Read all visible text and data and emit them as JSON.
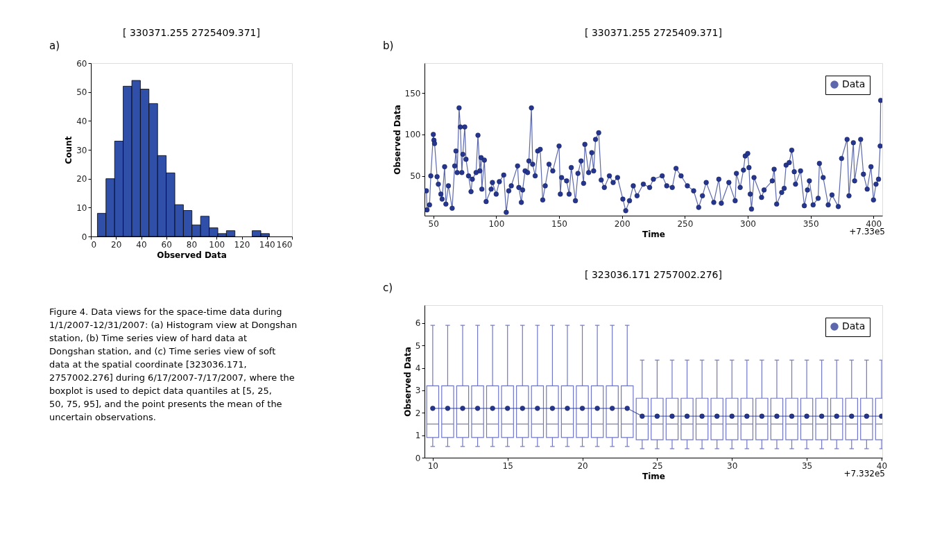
{
  "chart_data": [
    {
      "type": "histogram",
      "title": "[ 330371.255 2725409.371]",
      "xlabel": "Observed Data",
      "ylabel": "Count",
      "bins": [
        5.2,
        12.0,
        18.9,
        25.7,
        32.6,
        39.4,
        46.2,
        53.1,
        59.9,
        66.8,
        73.6,
        80.4,
        87.3,
        94.1,
        101.0,
        107.8,
        114.6,
        121.5,
        128.3,
        135.2,
        142.0
      ],
      "values": [
        8,
        20,
        33,
        52,
        54,
        51,
        46,
        28,
        22,
        11,
        9,
        4,
        7,
        3,
        1,
        2,
        0,
        0,
        2,
        1
      ],
      "color": "#2f4fa8",
      "xlim": [
        0,
        160
      ],
      "ylim": [
        0,
        60
      ],
      "xticks": [
        0,
        20,
        40,
        60,
        80,
        100,
        120,
        140,
        160
      ],
      "yticks": [
        0,
        10,
        20,
        30,
        40,
        50,
        60
      ],
      "grid": false,
      "annotations": [
        "a)",
        "Figure 4. Data views for the space-time data during 1/1/2007-12/31/2007: (a) Histogram view at Dongshan station, (b) Time series view of hard data at Dongshan station, and (c) Time series view of soft data at the spatial coordinate [323036.171, 2757002.276] during 6/17/2007-7/17/2007, where the boxplot is used to depict data quantiles at [5, 25, 50, 75, 95], and the point presents the mean of the uncertain observations."
      ]
    },
    {
      "type": "line",
      "title": "[ 330371.255 2725409.371]",
      "xlabel": "Time",
      "ylabel": "Observed Data",
      "x": [
        44.5,
        45,
        47,
        48,
        50,
        50.5,
        51,
        53,
        54,
        56,
        57,
        59,
        60,
        62,
        65,
        67,
        68,
        69,
        70.5,
        71.5,
        72.7,
        73.5,
        75,
        76,
        78,
        80,
        81,
        84,
        85.5,
        87,
        88,
        88.6,
        90.6,
        92,
        96,
        97,
        100,
        102.5,
        106,
        108,
        110,
        112,
        117,
        118,
        120,
        121,
        123,
        125,
        126,
        128,
        129,
        131,
        133,
        135,
        137,
        139,
        142,
        145,
        150,
        151,
        152,
        156,
        158,
        159.7,
        163,
        165,
        167.5,
        169.5,
        170.5,
        173.5,
        176,
        177.5,
        179,
        181.5,
        183.5,
        186,
        190,
        193,
        196.5,
        200.7,
        203,
        206,
        209,
        212,
        217,
        222,
        225,
        232,
        235.6,
        240,
        243,
        247,
        252,
        257,
        261,
        264,
        267,
        273,
        277,
        279,
        285,
        290,
        291,
        294,
        296.6,
        298,
        300,
        301,
        302,
        303,
        305,
        311,
        313,
        319.5,
        321,
        323,
        327,
        329,
        330.5,
        333,
        335,
        337,
        338,
        342,
        345,
        347.5,
        349,
        352,
        356,
        357,
        360,
        364,
        367,
        372,
        374.6,
        379,
        380.5,
        384,
        385,
        389.8,
        392,
        395,
        398,
        400,
        402,
        404,
        405.3,
        405.7
      ],
      "series": [
        {
          "name": "Data",
          "color": "#26368f",
          "values": [
            32,
            9,
            15,
            50,
            100,
            93,
            89,
            49,
            40,
            28,
            22,
            61,
            16,
            38,
            11,
            62,
            80,
            54,
            132,
            109,
            54,
            76,
            109,
            70,
            50,
            31,
            46,
            54,
            99,
            56,
            72,
            34,
            69,
            19,
            34,
            42,
            28,
            43,
            51,
            6,
            32,
            38,
            62,
            36,
            18,
            33,
            56,
            54,
            68,
            132,
            64,
            50,
            80,
            82,
            21,
            38,
            64,
            56,
            86,
            28,
            48,
            44,
            28,
            60,
            20,
            53,
            68,
            41,
            88,
            54,
            78,
            56,
            94,
            102,
            45,
            36,
            50,
            42,
            48,
            22,
            8,
            20,
            38,
            26,
            40,
            36,
            46,
            50,
            38,
            36,
            59,
            50,
            38,
            32,
            12,
            26,
            42,
            18,
            46,
            17,
            42,
            20,
            53,
            36,
            57,
            74,
            77,
            60,
            28,
            10,
            48,
            24,
            33,
            44,
            58,
            16,
            30,
            35,
            63,
            66,
            81,
            55,
            40,
            56,
            14,
            33,
            44,
            15,
            23,
            65,
            48,
            15,
            27,
            13,
            71,
            94,
            26,
            90,
            44,
            94,
            52,
            34,
            61,
            21,
            40,
            46,
            86,
            141
          ]
        }
      ],
      "xlim": [
        43,
        407
      ],
      "ylim": [
        2,
        186
      ],
      "xticks": [
        50,
        100,
        150,
        200,
        250,
        300,
        350,
        400
      ],
      "yticks": [
        50,
        100,
        150
      ],
      "marker": "circle",
      "grid": false,
      "legend": "top right",
      "annotations": [
        "b)",
        "+7.33e5"
      ]
    },
    {
      "type": "box",
      "title": "[ 323036.171 2757002.276]",
      "xlabel": "Time",
      "ylabel": "Observed Data",
      "x": [
        10,
        11,
        12,
        13,
        14,
        15,
        16,
        17,
        18,
        19,
        20,
        21,
        22,
        23,
        24,
        25,
        26,
        27,
        28,
        29,
        30,
        31,
        32,
        33,
        34,
        35,
        36,
        37,
        38,
        39,
        40
      ],
      "boxes": [
        {
          "low": 0.5,
          "q1": 0.9,
          "median": 1.5,
          "q3": 3.2,
          "high": 5.9
        },
        {
          "low": 0.5,
          "q1": 0.9,
          "median": 1.5,
          "q3": 3.2,
          "high": 5.9
        },
        {
          "low": 0.5,
          "q1": 0.9,
          "median": 1.5,
          "q3": 3.2,
          "high": 5.9
        },
        {
          "low": 0.5,
          "q1": 0.9,
          "median": 1.5,
          "q3": 3.2,
          "high": 5.9
        },
        {
          "low": 0.5,
          "q1": 0.9,
          "median": 1.5,
          "q3": 3.2,
          "high": 5.9
        },
        {
          "low": 0.5,
          "q1": 0.9,
          "median": 1.5,
          "q3": 3.2,
          "high": 5.9
        },
        {
          "low": 0.5,
          "q1": 0.9,
          "median": 1.5,
          "q3": 3.2,
          "high": 5.9
        },
        {
          "low": 0.5,
          "q1": 0.9,
          "median": 1.5,
          "q3": 3.2,
          "high": 5.9
        },
        {
          "low": 0.5,
          "q1": 0.9,
          "median": 1.5,
          "q3": 3.2,
          "high": 5.9
        },
        {
          "low": 0.5,
          "q1": 0.9,
          "median": 1.5,
          "q3": 3.2,
          "high": 5.9
        },
        {
          "low": 0.5,
          "q1": 0.9,
          "median": 1.5,
          "q3": 3.2,
          "high": 5.9
        },
        {
          "low": 0.5,
          "q1": 0.9,
          "median": 1.5,
          "q3": 3.2,
          "high": 5.9
        },
        {
          "low": 0.5,
          "q1": 0.9,
          "median": 1.5,
          "q3": 3.2,
          "high": 5.9
        },
        {
          "low": 0.5,
          "q1": 0.9,
          "median": 1.5,
          "q3": 3.2,
          "high": 5.9
        },
        {
          "low": 0.4,
          "q1": 0.8,
          "median": 1.5,
          "q3": 2.65,
          "high": 4.35
        },
        {
          "low": 0.4,
          "q1": 0.8,
          "median": 1.5,
          "q3": 2.65,
          "high": 4.35
        },
        {
          "low": 0.4,
          "q1": 0.8,
          "median": 1.5,
          "q3": 2.65,
          "high": 4.35
        },
        {
          "low": 0.4,
          "q1": 0.8,
          "median": 1.5,
          "q3": 2.65,
          "high": 4.35
        },
        {
          "low": 0.4,
          "q1": 0.8,
          "median": 1.5,
          "q3": 2.65,
          "high": 4.35
        },
        {
          "low": 0.4,
          "q1": 0.8,
          "median": 1.5,
          "q3": 2.65,
          "high": 4.35
        },
        {
          "low": 0.4,
          "q1": 0.8,
          "median": 1.5,
          "q3": 2.65,
          "high": 4.35
        },
        {
          "low": 0.4,
          "q1": 0.8,
          "median": 1.5,
          "q3": 2.65,
          "high": 4.35
        },
        {
          "low": 0.4,
          "q1": 0.8,
          "median": 1.5,
          "q3": 2.65,
          "high": 4.35
        },
        {
          "low": 0.4,
          "q1": 0.8,
          "median": 1.5,
          "q3": 2.65,
          "high": 4.35
        },
        {
          "low": 0.4,
          "q1": 0.8,
          "median": 1.5,
          "q3": 2.65,
          "high": 4.35
        },
        {
          "low": 0.4,
          "q1": 0.8,
          "median": 1.5,
          "q3": 2.65,
          "high": 4.35
        },
        {
          "low": 0.4,
          "q1": 0.8,
          "median": 1.5,
          "q3": 2.65,
          "high": 4.35
        },
        {
          "low": 0.4,
          "q1": 0.8,
          "median": 1.5,
          "q3": 2.65,
          "high": 4.35
        },
        {
          "low": 0.4,
          "q1": 0.8,
          "median": 1.5,
          "q3": 2.65,
          "high": 4.35
        },
        {
          "low": 0.4,
          "q1": 0.8,
          "median": 1.5,
          "q3": 2.65,
          "high": 4.35
        },
        {
          "low": 0.4,
          "q1": 0.8,
          "median": 1.5,
          "q3": 2.65,
          "high": 4.35
        }
      ],
      "color": "#7076c8",
      "series": [
        {
          "name": "Data",
          "type": "line",
          "color": "#26368f",
          "values": [
            2.2,
            2.2,
            2.2,
            2.2,
            2.2,
            2.2,
            2.2,
            2.2,
            2.2,
            2.2,
            2.2,
            2.2,
            2.2,
            2.2,
            1.85,
            1.85,
            1.85,
            1.85,
            1.85,
            1.85,
            1.85,
            1.85,
            1.85,
            1.85,
            1.85,
            1.85,
            1.85,
            1.85,
            1.85,
            1.85,
            1.85
          ]
        }
      ],
      "xlim": [
        9.45,
        40.05
      ],
      "ylim": [
        0,
        6.8
      ],
      "xticks": [
        10,
        15,
        20,
        25,
        30,
        35,
        40
      ],
      "yticks": [
        0,
        1,
        2,
        3,
        4,
        5,
        6
      ],
      "marker": "circle",
      "grid": false,
      "legend": "top right",
      "annotations": [
        "c)",
        "+7.332e5"
      ]
    }
  ]
}
